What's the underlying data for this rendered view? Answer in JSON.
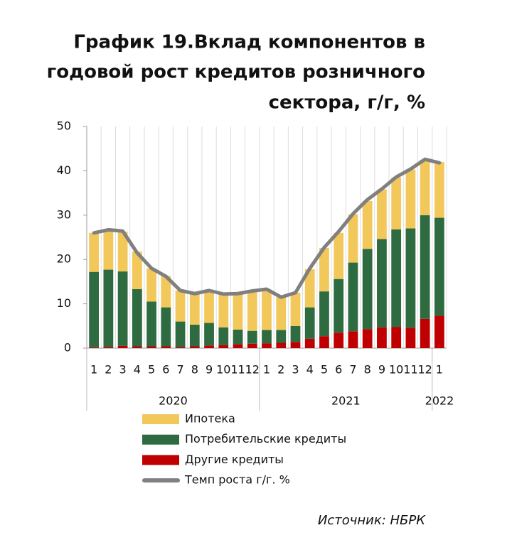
{
  "chart_data": {
    "type": "bar",
    "title": [
      "График 19.Вклад компонентов в",
      "годовой рост кредитов розничного",
      "сектора, г/г, %"
    ],
    "categories": [
      "1",
      "2",
      "3",
      "4",
      "5",
      "6",
      "7",
      "8",
      "9",
      "10",
      "11",
      "12",
      "1",
      "2",
      "3",
      "4",
      "5",
      "6",
      "7",
      "8",
      "9",
      "10",
      "11",
      "12",
      "1"
    ],
    "x_groups": [
      "2020",
      "2021",
      "2022"
    ],
    "stacked": true,
    "series": [
      {
        "name": "Другие кредиты",
        "color": "#c00000",
        "values": [
          0.2,
          0.3,
          0.5,
          0.4,
          0.4,
          0.4,
          0.3,
          0.4,
          0.6,
          0.7,
          0.9,
          1.0,
          1.1,
          1.2,
          1.4,
          2.1,
          2.7,
          3.5,
          3.8,
          4.3,
          4.7,
          4.8,
          4.6,
          6.6,
          7.3
        ]
      },
      {
        "name": "Потребительские кредиты",
        "color": "#2e6b40",
        "values": [
          17.0,
          17.4,
          16.8,
          12.9,
          10.1,
          8.8,
          5.7,
          4.9,
          5.1,
          4.0,
          3.3,
          2.9,
          3.0,
          2.9,
          3.6,
          7.1,
          10.1,
          12.1,
          15.5,
          18.1,
          19.9,
          22.0,
          22.4,
          23.4,
          22.1
        ]
      },
      {
        "name": "Ипотека",
        "color": "#f2c85b",
        "values": [
          8.8,
          9.1,
          9.0,
          8.5,
          7.5,
          7.1,
          7.0,
          7.2,
          7.3,
          7.5,
          8.2,
          8.9,
          9.1,
          7.4,
          7.5,
          8.6,
          9.8,
          10.4,
          10.9,
          10.8,
          11.2,
          11.7,
          13.3,
          12.5,
          12.6
        ]
      },
      {
        "name": "Темп роста г/г. %",
        "type": "line",
        "color": "#808080",
        "values": [
          26.0,
          26.7,
          26.4,
          21.5,
          18.0,
          16.2,
          13.0,
          12.3,
          13.0,
          12.2,
          12.3,
          12.9,
          13.3,
          11.5,
          12.5,
          18.0,
          22.7,
          26.3,
          30.3,
          33.5,
          35.9,
          38.6,
          40.4,
          42.6,
          41.8
        ]
      }
    ],
    "legend_order": [
      2,
      1,
      0,
      3
    ],
    "ylim": [
      0,
      50
    ],
    "yticks": [
      0,
      10,
      20,
      30,
      40,
      50
    ],
    "grid": "vertical",
    "source": "Источник: НБРК"
  }
}
